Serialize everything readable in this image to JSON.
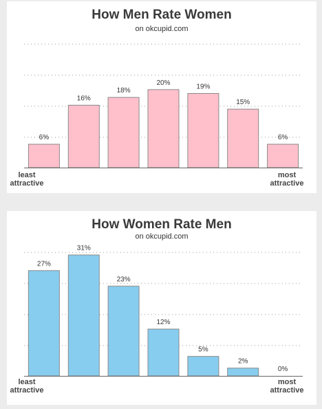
{
  "charts": [
    {
      "title": "How Men Rate Women",
      "subtitle": "on okcupid.com",
      "left_label": [
        "least",
        "attractive"
      ],
      "right_label": [
        "most",
        "attractive"
      ]
    },
    {
      "title": "How Women Rate Men",
      "subtitle": "on okcupid.com",
      "left_label": [
        "least",
        "attractive"
      ],
      "right_label": [
        "most",
        "attractive"
      ]
    }
  ],
  "chart_data": [
    {
      "type": "bar",
      "title": "How Men Rate Women",
      "subtitle": "on okcupid.com",
      "categories": [
        "1",
        "2",
        "3",
        "4",
        "5",
        "6",
        "7"
      ],
      "values": [
        6,
        16,
        18,
        20,
        19,
        15,
        6
      ],
      "data_labels": [
        "6%",
        "16%",
        "18%",
        "20%",
        "19%",
        "15%",
        "6%"
      ],
      "ylim": [
        0,
        32
      ],
      "grid": true,
      "bar_color": "#ffc0cb",
      "xlabel": "",
      "ylabel": ""
    },
    {
      "type": "bar",
      "title": "How Women Rate Men",
      "subtitle": "on okcupid.com",
      "categories": [
        "1",
        "2",
        "3",
        "4",
        "5",
        "6",
        "7"
      ],
      "values": [
        27,
        31,
        23,
        12,
        5,
        2,
        0
      ],
      "data_labels": [
        "27%",
        "31%",
        "23%",
        "12%",
        "5%",
        "2%",
        "0%"
      ],
      "ylim": [
        0,
        32
      ],
      "grid": true,
      "bar_color": "#87cdef",
      "xlabel": "",
      "ylabel": ""
    }
  ]
}
